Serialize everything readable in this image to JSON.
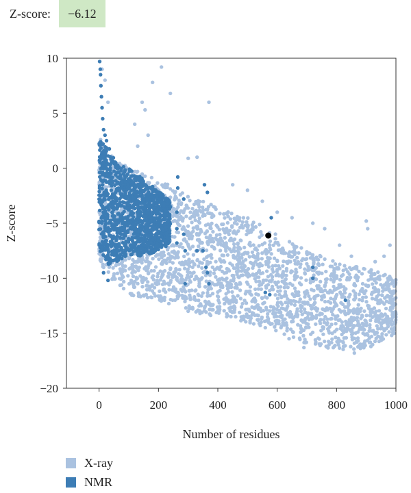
{
  "zscore": {
    "label": "Z-score:",
    "value": "−6.12",
    "badge_color": "#cfe8c5"
  },
  "chart_data": {
    "type": "scatter",
    "title": "",
    "xlabel": "Number of residues",
    "ylabel": "Z-score",
    "xlim": [
      -110,
      1000
    ],
    "ylim": [
      -20,
      10
    ],
    "xticks": [
      0,
      200,
      400,
      600,
      800,
      1000
    ],
    "yticks": [
      10,
      5,
      0,
      -5,
      -10,
      -15,
      -20
    ],
    "grid": false,
    "legend_placement": "bottom-left",
    "series": [
      {
        "name": "X-ray",
        "color": "#aac2e0",
        "band": [
          [
            0,
            3.0,
            -8.5
          ],
          [
            50,
            1.0,
            -10.5
          ],
          [
            100,
            0.0,
            -11.5
          ],
          [
            200,
            -1.0,
            -12.0
          ],
          [
            300,
            -2.5,
            -13.0
          ],
          [
            400,
            -3.5,
            -13.5
          ],
          [
            500,
            -4.5,
            -14.0
          ],
          [
            600,
            -6.0,
            -15.0
          ],
          [
            700,
            -7.5,
            -16.0
          ],
          [
            800,
            -8.5,
            -16.5
          ],
          [
            900,
            -9.0,
            -16.5
          ],
          [
            1000,
            -10.0,
            -15.0
          ]
        ],
        "outliers": [
          [
            10,
            9.0
          ],
          [
            20,
            8.0
          ],
          [
            30,
            6.0
          ],
          [
            210,
            9.2
          ],
          [
            180,
            7.8
          ],
          [
            240,
            6.8
          ],
          [
            145,
            6.0
          ],
          [
            155,
            5.3
          ],
          [
            370,
            6.0
          ],
          [
            120,
            4.0
          ],
          [
            130,
            2.0
          ],
          [
            165,
            3.0
          ],
          [
            300,
            0.9
          ],
          [
            330,
            1.0
          ],
          [
            450,
            -1.5
          ],
          [
            500,
            -2.0
          ],
          [
            550,
            -3.0
          ],
          [
            600,
            -4.0
          ],
          [
            650,
            -4.5
          ],
          [
            720,
            -5.0
          ],
          [
            760,
            -5.5
          ],
          [
            810,
            -7.0
          ],
          [
            850,
            -8.0
          ],
          [
            900,
            -4.8
          ],
          [
            905,
            -5.5
          ],
          [
            930,
            -8.5
          ],
          [
            960,
            -8.0
          ],
          [
            980,
            -7.0
          ],
          [
            690,
            -16.3
          ],
          [
            860,
            -16.8
          ],
          [
            880,
            -16.0
          ],
          [
            640,
            -15.5
          ],
          [
            560,
            -14.5
          ],
          [
            220,
            -12.0
          ],
          [
            300,
            -13.0
          ],
          [
            460,
            -13.5
          ],
          [
            990,
            -13.5
          ],
          [
            995,
            -14.5
          ]
        ]
      },
      {
        "name": "NMR",
        "color": "#3d7db5",
        "band": [
          [
            0,
            2.5,
            -7.5
          ],
          [
            30,
            2.0,
            -9.0
          ],
          [
            60,
            0.5,
            -8.5
          ],
          [
            100,
            0.0,
            -8.0
          ],
          [
            150,
            -1.0,
            -8.0
          ],
          [
            200,
            -2.0,
            -7.5
          ],
          [
            240,
            -3.0,
            -7.0
          ]
        ],
        "outliers": [
          [
            2,
            9.7
          ],
          [
            4,
            9.0
          ],
          [
            5,
            8.5
          ],
          [
            6,
            7.5
          ],
          [
            8,
            6.5
          ],
          [
            10,
            5.5
          ],
          [
            12,
            4.5
          ],
          [
            15,
            3.5
          ],
          [
            20,
            3.0
          ],
          [
            25,
            2.5
          ],
          [
            265,
            -0.8
          ],
          [
            265,
            -1.8
          ],
          [
            285,
            -2.8
          ],
          [
            262,
            -4.0
          ],
          [
            262,
            -5.5
          ],
          [
            262,
            -6.8
          ],
          [
            285,
            -6.0
          ],
          [
            290,
            -7.5
          ],
          [
            355,
            -1.5
          ],
          [
            350,
            -7.5
          ],
          [
            360,
            -9.0
          ],
          [
            365,
            -9.5
          ],
          [
            370,
            -10.5
          ],
          [
            290,
            -10.5
          ],
          [
            330,
            -7.5
          ],
          [
            560,
            -11.3
          ],
          [
            575,
            -11.5
          ],
          [
            720,
            -9.0
          ],
          [
            720,
            -10.0
          ],
          [
            830,
            -12.0
          ],
          [
            30,
            -10.2
          ],
          [
            15,
            -9.5
          ],
          [
            580,
            -4.5
          ],
          [
            365,
            -2.2
          ]
        ]
      },
      {
        "name": "",
        "color": "#000000",
        "points": [
          [
            570,
            -6.12
          ]
        ]
      }
    ]
  },
  "legend": {
    "items": [
      {
        "label": "X-ray",
        "color": "#aac2e0"
      },
      {
        "label": "NMR",
        "color": "#3d7db5"
      }
    ]
  }
}
